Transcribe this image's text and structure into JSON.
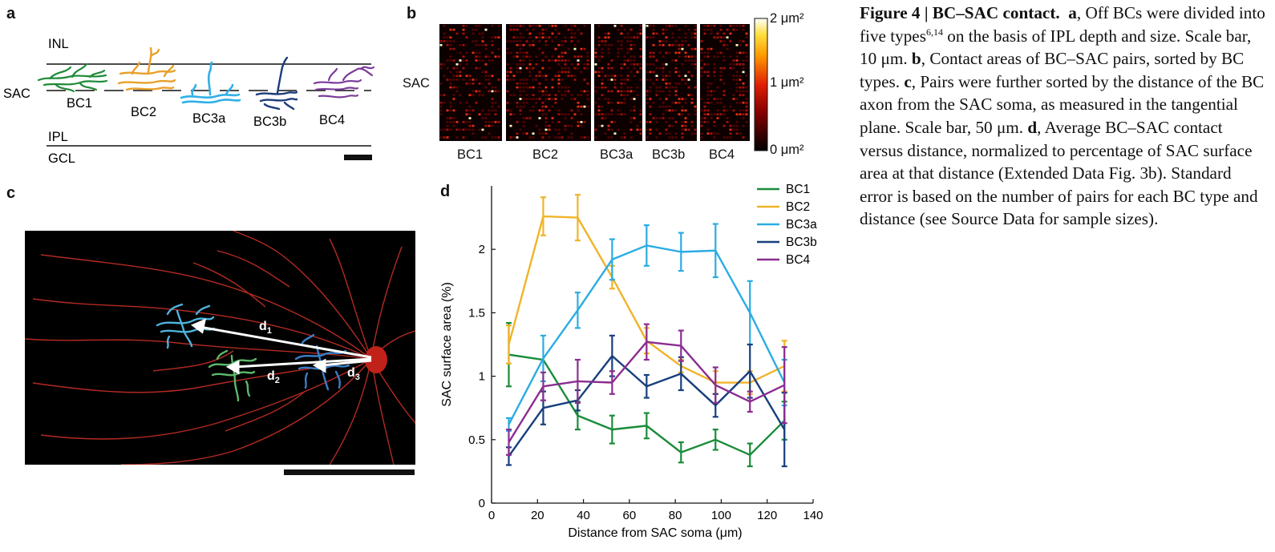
{
  "panel_a": {
    "label": "a",
    "layers": {
      "inl": "INL",
      "sac": "SAC",
      "ipl": "IPL",
      "gcl": "GCL"
    },
    "cells": [
      "BC1",
      "BC2",
      "BC3a",
      "BC3b",
      "BC4"
    ]
  },
  "panel_b": {
    "label": "b",
    "row_label": "SAC",
    "columns": [
      "BC1",
      "BC2",
      "BC3a",
      "BC3b",
      "BC4"
    ],
    "colorbar": {
      "max": "2 μm²",
      "mid": "1 μm²",
      "min": "0 μm²"
    }
  },
  "panel_c": {
    "label": "c",
    "distance_labels": [
      "d",
      "d",
      "d"
    ],
    "distance_subscripts": [
      "1",
      "2",
      "3"
    ]
  },
  "chart_data": {
    "type": "line",
    "panel_label": "d",
    "xlabel": "Distance from SAC soma (μm)",
    "ylabel": "SAC surface area (%)",
    "xlim": [
      0,
      140
    ],
    "ylim": [
      0,
      2.5
    ],
    "xticks": [
      0,
      20,
      40,
      60,
      80,
      100,
      120,
      140
    ],
    "yticks": [
      0,
      0.5,
      1,
      1.5,
      2
    ],
    "ytick_labels": [
      "0",
      "0.5",
      "1",
      "1.5",
      "2"
    ],
    "grid": false,
    "legend_position": "top-right",
    "x": [
      7.5,
      22.5,
      37.5,
      52.5,
      67.5,
      82.5,
      97.5,
      112.5,
      127.5
    ],
    "series": [
      {
        "name": "BC1",
        "color": "#1a8c3a",
        "values": [
          1.17,
          1.13,
          0.69,
          0.58,
          0.61,
          0.4,
          0.5,
          0.38,
          0.65
        ],
        "err": [
          0.25,
          0.0,
          0.11,
          0.11,
          0.1,
          0.08,
          0.08,
          0.09,
          0.15
        ]
      },
      {
        "name": "BC2",
        "color": "#f0b428",
        "values": [
          1.25,
          2.26,
          2.25,
          1.78,
          1.28,
          1.08,
          0.95,
          0.95,
          1.08
        ],
        "err": [
          0.15,
          0.15,
          0.18,
          0.09,
          0.1,
          0.05,
          0.09,
          0.09,
          0.2
        ]
      },
      {
        "name": "BC3a",
        "color": "#2aace2",
        "values": [
          0.62,
          1.14,
          1.52,
          1.92,
          2.03,
          1.98,
          1.99,
          1.5,
          0.95
        ],
        "err": [
          0.05,
          0.18,
          0.14,
          0.16,
          0.16,
          0.15,
          0.21,
          0.25,
          0.18
        ]
      },
      {
        "name": "BC3b",
        "color": "#173f7d",
        "values": [
          0.37,
          0.75,
          0.81,
          1.16,
          0.92,
          1.02,
          0.77,
          1.04,
          0.58
        ],
        "err": [
          0.07,
          0.13,
          0.08,
          0.16,
          0.09,
          0.13,
          0.09,
          0.21,
          0.29
        ]
      },
      {
        "name": "BC4",
        "color": "#8b2d90",
        "values": [
          0.48,
          0.92,
          0.96,
          0.95,
          1.27,
          1.24,
          0.93,
          0.8,
          0.93
        ],
        "err": [
          0.1,
          0.11,
          0.17,
          0.09,
          0.14,
          0.12,
          0.14,
          0.08,
          0.3
        ]
      }
    ]
  },
  "caption": {
    "title": "Figure 4 | BC–SAC contact.",
    "a_lbl": "a",
    "a_text_1": ", Off BCs were divided into five types",
    "a_refs": "6,14",
    "a_text_2": " on the basis of IPL depth and size. Scale bar, 10 μm. ",
    "b_lbl": "b",
    "b_text": ", Contact areas of BC–SAC pairs, sorted by BC types. ",
    "c_lbl": "c",
    "c_text": ", Pairs were further sorted by the distance of the BC axon from the SAC soma, as measured in the tangential plane. Scale bar, 50 μm. ",
    "d_lbl": "d",
    "d_text": ", Average BC–SAC contact versus distance, normalized to percentage of SAC surface area at that distance (Extended Data Fig. 3b). Standard error is based on the number of pairs for each BC type and distance (see Source Data for sample sizes)."
  }
}
